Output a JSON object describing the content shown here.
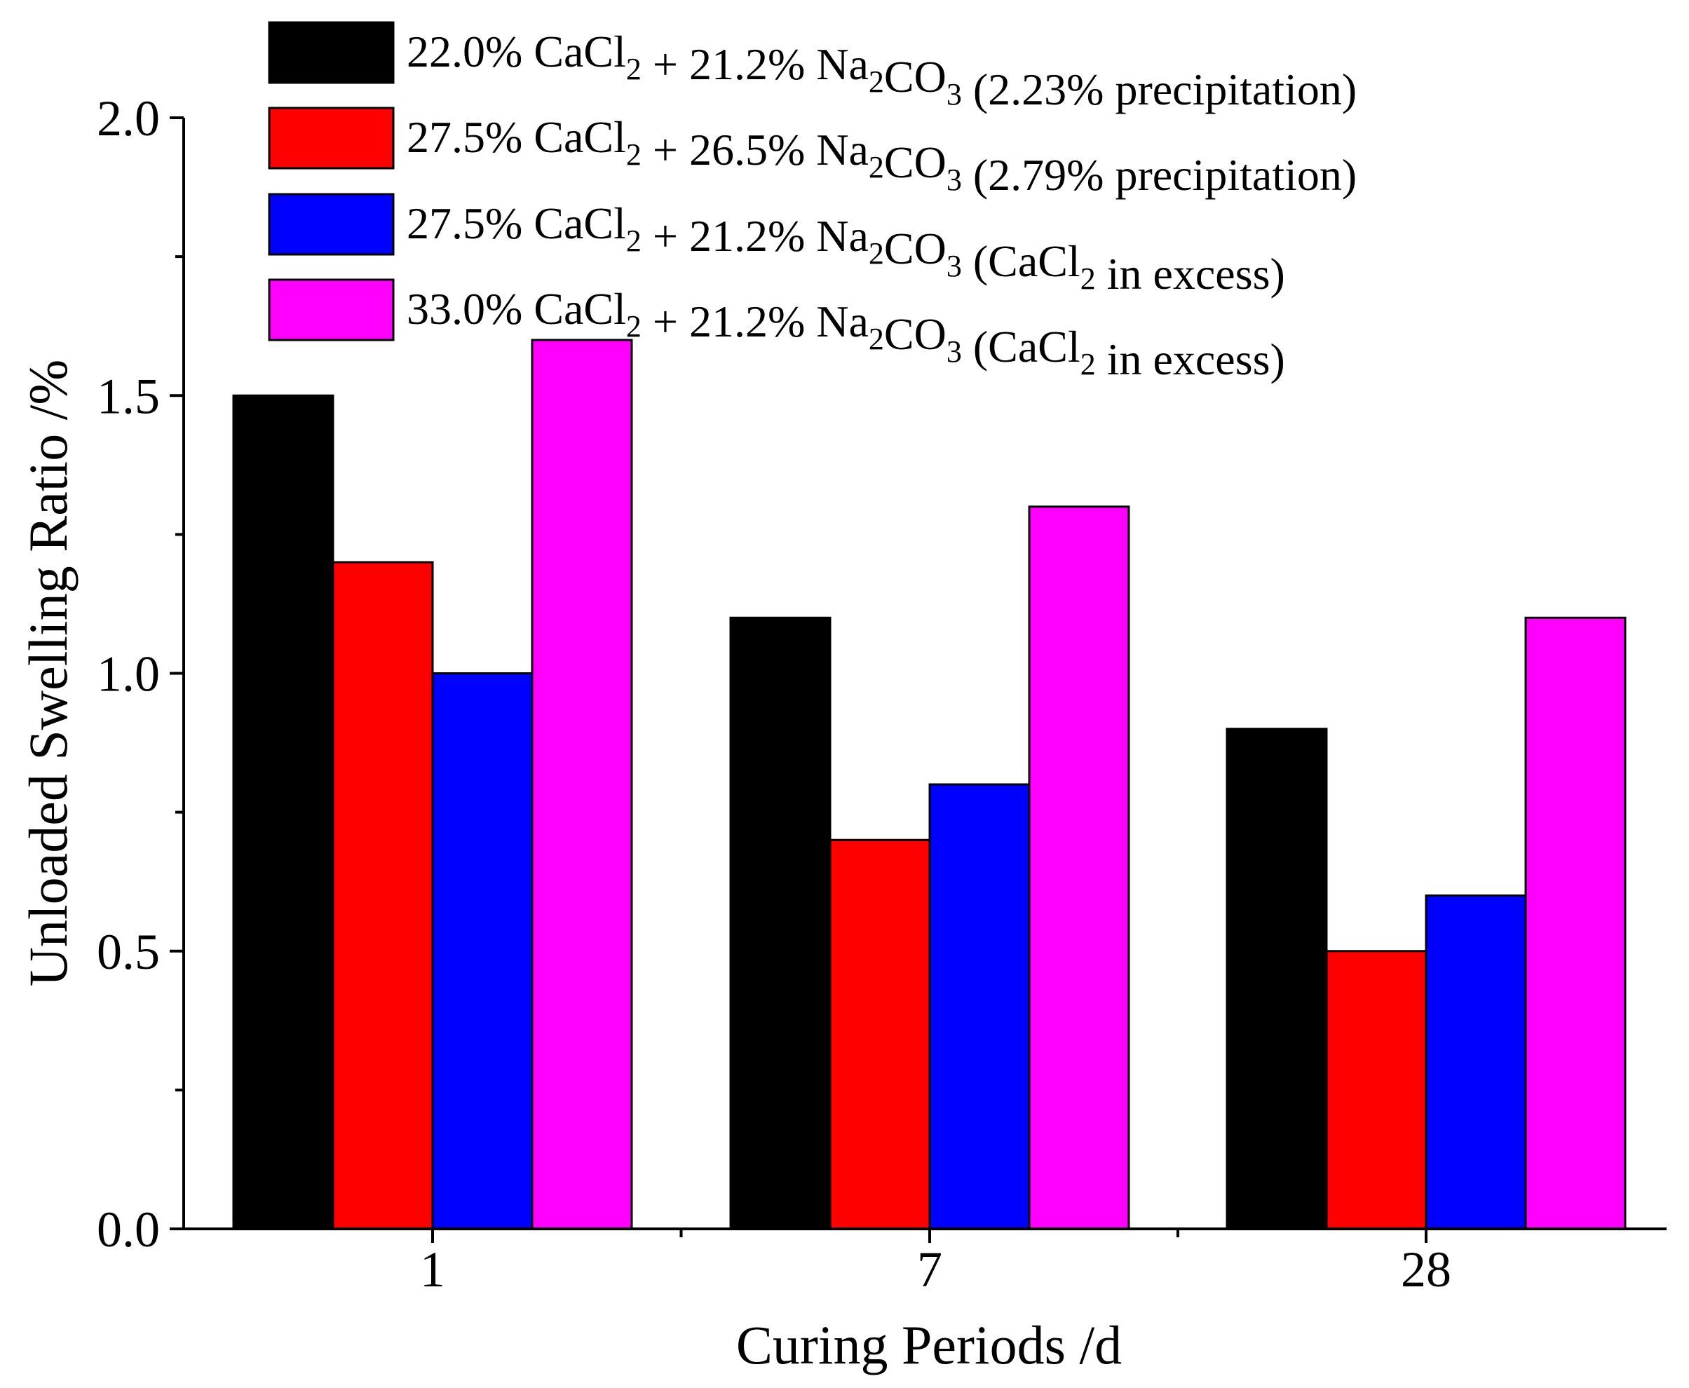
{
  "chart_data": {
    "type": "bar",
    "title": "",
    "xlabel": "Curing Periods /d",
    "ylabel": "Unloaded Swelling Ratio /%",
    "categories": [
      "1",
      "7",
      "28"
    ],
    "ylim": [
      0,
      2.0
    ],
    "yticks": [
      0.0,
      0.5,
      1.0,
      1.5,
      2.0
    ],
    "ytick_labels": [
      "0.0",
      "0.5",
      "1.0",
      "1.5",
      "2.0"
    ],
    "legend_position": "top",
    "series": [
      {
        "name": "22.0% CaCl2 + 21.2% Na2CO3 (2.23% precipitation)",
        "color": "#000000",
        "values": [
          1.5,
          1.1,
          0.9
        ],
        "label_parts": [
          {
            "t": "22.0% CaCl"
          },
          {
            "t": "2",
            "sub": true
          },
          {
            "t": " + 21.2% Na"
          },
          {
            "t": "2",
            "sub": true
          },
          {
            "t": "CO"
          },
          {
            "t": "3",
            "sub": true
          },
          {
            "t": " (2.23% precipitation)"
          }
        ]
      },
      {
        "name": "27.5% CaCl2 + 26.5% Na2CO3 (2.79% precipitation)",
        "color": "#ff0000",
        "values": [
          1.2,
          0.7,
          0.5
        ],
        "label_parts": [
          {
            "t": "27.5% CaCl"
          },
          {
            "t": "2",
            "sub": true
          },
          {
            "t": " + 26.5% Na"
          },
          {
            "t": "2",
            "sub": true
          },
          {
            "t": "CO"
          },
          {
            "t": "3",
            "sub": true
          },
          {
            "t": " (2.79% precipitation)"
          }
        ]
      },
      {
        "name": "27.5% CaCl2 + 21.2% Na2CO3 (CaCl2 in excess)",
        "color": "#0000ff",
        "values": [
          1.0,
          0.8,
          0.6
        ],
        "label_parts": [
          {
            "t": "27.5% CaCl"
          },
          {
            "t": "2",
            "sub": true
          },
          {
            "t": " + 21.2% Na"
          },
          {
            "t": "2",
            "sub": true
          },
          {
            "t": "CO"
          },
          {
            "t": "3",
            "sub": true
          },
          {
            "t": " (CaCl"
          },
          {
            "t": "2",
            "sub": true
          },
          {
            "t": " in excess)"
          }
        ]
      },
      {
        "name": "33.0% CaCl2 + 21.2% Na2CO3 (CaCl2 in excess)",
        "color": "#ff00ff",
        "values": [
          1.6,
          1.3,
          1.1
        ],
        "label_parts": [
          {
            "t": "33.0% CaCl"
          },
          {
            "t": "2",
            "sub": true
          },
          {
            "t": " + 21.2% Na"
          },
          {
            "t": "2",
            "sub": true
          },
          {
            "t": "CO"
          },
          {
            "t": "3",
            "sub": true
          },
          {
            "t": " (CaCl"
          },
          {
            "t": "2",
            "sub": true
          },
          {
            "t": " in excess)"
          }
        ]
      }
    ]
  }
}
